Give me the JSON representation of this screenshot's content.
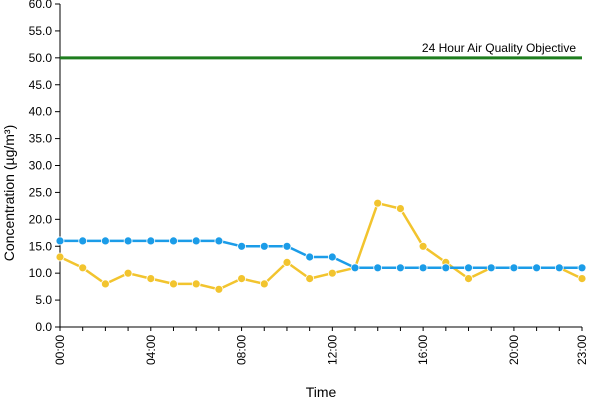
{
  "chart_data": {
    "type": "line",
    "xlabel": "Time",
    "ylabel": "Concentration (µg/m³)",
    "ylim": [
      0,
      60
    ],
    "yticks": [
      "0.0",
      "5.0",
      "10.0",
      "15.0",
      "20.0",
      "25.0",
      "30.0",
      "35.0",
      "40.0",
      "45.0",
      "50.0",
      "55.0",
      "60.0"
    ],
    "ytick_values": [
      0,
      5,
      10,
      15,
      20,
      25,
      30,
      35,
      40,
      45,
      50,
      55,
      60
    ],
    "x": [
      0,
      1,
      2,
      3,
      4,
      5,
      6,
      7,
      8,
      9,
      10,
      11,
      12,
      13,
      14,
      15,
      16,
      17,
      18,
      19,
      20,
      21,
      22,
      23
    ],
    "xlim": [
      0,
      23
    ],
    "xticks": [
      "00:00",
      "04:00",
      "08:00",
      "12:00",
      "16:00",
      "20:00",
      "23:00"
    ],
    "xtick_values": [
      0,
      4,
      8,
      12,
      16,
      20,
      23
    ],
    "grid": false,
    "series": [
      {
        "color": "#1b9ce8",
        "values": [
          16,
          16,
          16,
          16,
          16,
          16,
          16,
          16,
          15,
          15,
          15,
          13,
          13,
          11,
          11,
          11,
          11,
          11,
          11,
          11,
          11,
          11,
          11,
          11
        ]
      },
      {
        "color": "#f2c42e",
        "values": [
          13,
          11,
          8,
          10,
          9,
          8,
          8,
          7,
          9,
          8,
          12,
          9,
          10,
          11,
          23,
          22,
          15,
          12,
          9,
          11,
          11,
          11,
          11,
          9
        ]
      }
    ],
    "reference_line": {
      "value": 50,
      "label": "24 Hour Air Quality Objective",
      "color": "#1e7d1e"
    }
  }
}
